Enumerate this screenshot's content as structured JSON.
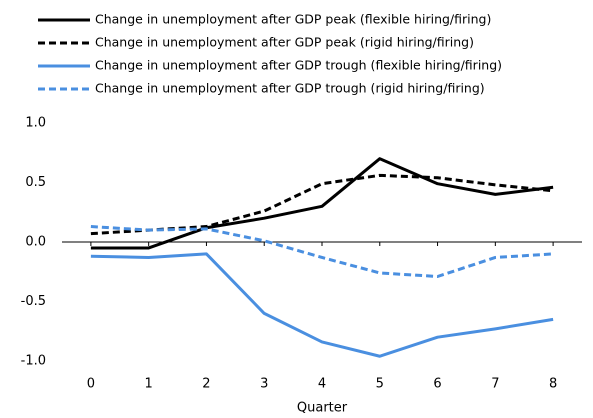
{
  "chart_data": {
    "type": "line",
    "x": [
      0,
      1,
      2,
      3,
      4,
      5,
      6,
      7,
      8
    ],
    "xlim": [
      -0.5,
      8.5
    ],
    "xticks": [
      0,
      1,
      2,
      3,
      4,
      5,
      6,
      7,
      8
    ],
    "xlabel": "Quarter",
    "ylim": [
      -1,
      1
    ],
    "yticks": [
      {
        "value": 1,
        "label": "1.0"
      },
      {
        "value": 0.5,
        "label": "0.5"
      },
      {
        "value": 0,
        "label": "0.0"
      },
      {
        "value": -0.5,
        "label": "-0.5"
      },
      {
        "value": -1,
        "label": "-1.0"
      }
    ],
    "legend": "top-left",
    "series": [
      {
        "name": "Change in unemployment after GDP peak (flexible hiring/firing)",
        "color": "#000000",
        "dash": "solid",
        "values": [
          -0.05,
          -0.05,
          0.12,
          0.2,
          0.3,
          0.7,
          0.49,
          0.4,
          0.46
        ]
      },
      {
        "name": "Change in unemployment after GDP peak (rigid hiring/firing)",
        "color": "#000000",
        "dash": "dashed",
        "values": [
          0.07,
          0.1,
          0.13,
          0.26,
          0.49,
          0.56,
          0.54,
          0.48,
          0.43
        ]
      },
      {
        "name": "Change in unemployment after GDP trough (flexible hiring/firing)",
        "color": "#4a8fe0",
        "dash": "solid",
        "values": [
          -0.12,
          -0.13,
          -0.1,
          -0.6,
          -0.84,
          -0.96,
          -0.8,
          -0.73,
          -0.65
        ]
      },
      {
        "name": "Change in unemployment after GDP trough (rigid hiring/firing)",
        "color": "#4a8fe0",
        "dash": "dashed",
        "values": [
          0.13,
          0.1,
          0.11,
          0.01,
          -0.13,
          -0.26,
          -0.29,
          -0.13,
          -0.1
        ]
      }
    ]
  }
}
